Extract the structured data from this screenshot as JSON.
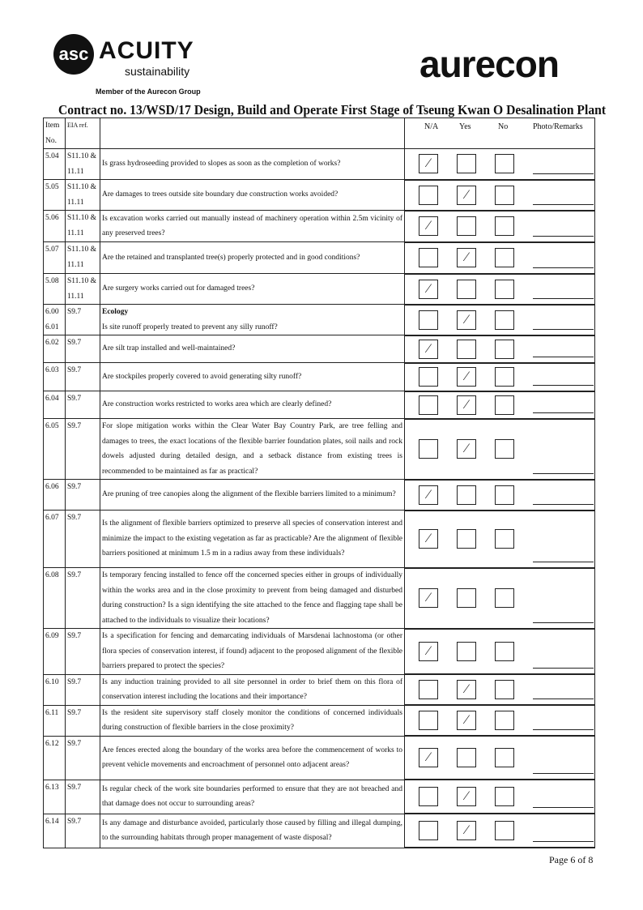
{
  "header": {
    "logo_left": "ACUITY",
    "logo_left_sub": "sustainability",
    "logo_left_member": "Member of the Aurecon Group",
    "logo_right": "aurecon",
    "title": "Contract no.  13/WSD/17 Design, Build and Operate First Stage of Tseung Kwan O Desalination Plant"
  },
  "columns": {
    "item": "Item No.",
    "eia": "EIA ref.",
    "na": "N/A",
    "yes": "Yes",
    "no": "No",
    "remarks": "Photo/Remarks"
  },
  "rows": [
    {
      "item": "5.04",
      "eia": "S11.10 & 11.11",
      "text": "Is grass hydroseeding provided to slopes as soon as the completion of works?",
      "check": "N/A"
    },
    {
      "item": "5.05",
      "eia": "S11.10 & 11.11",
      "text": "Are damages to trees outside site boundary due construction works avoided?",
      "check": "Yes"
    },
    {
      "item": "5.06",
      "eia": "S11.10 & 11.11",
      "text": "Is excavation works carried out manually instead of machinery operation within 2.5m vicinity of any preserved trees?",
      "check": "N/A"
    },
    {
      "item": "5.07",
      "eia": "S11.10 & 11.11",
      "text": "Are the retained and transplanted tree(s) properly protected and in good conditions?",
      "check": "Yes"
    },
    {
      "item": "5.08",
      "eia": "S11.10 & 11.11",
      "text": "Are surgery works carried out for damaged trees?",
      "check": "N/A"
    },
    {
      "item": "6.00 6.01",
      "eia": "S9.7",
      "heading": "Ecology",
      "text": "Is site runoff properly treated to prevent any silly runoff?",
      "check": "Yes"
    },
    {
      "item": "6.02",
      "eia": "S9.7",
      "text": "Are silt trap installed and well-maintained?",
      "check": "N/A"
    },
    {
      "item": "6.03",
      "eia": "S9.7",
      "text": "Are stockpiles properly covered to avoid generating silty runoff?",
      "check": "Yes"
    },
    {
      "item": "6.04",
      "eia": "S9.7",
      "text": "Are construction works restricted to works area which are clearly defined?",
      "check": "Yes"
    },
    {
      "item": "6.05",
      "eia": "S9.7",
      "text": "For slope mitigation works within the Clear Water Bay Country Park, are tree felling and damages to trees, the exact locations of the flexible barrier foundation plates, soil nails and rock dowels adjusted during detailed design, and a setback distance from existing trees is recommended to be maintained as far as practical?",
      "check": "Yes"
    },
    {
      "item": "6.06",
      "eia": "S9.7",
      "text": "Are pruning of tree canopies along the alignment of the flexible barriers limited to a minimum?",
      "check": "N/A"
    },
    {
      "item": "6.07",
      "eia": "S9.7",
      "text": "Is the alignment of flexible barriers optimized to preserve all species of conservation interest and minimize the impact to the existing vegetation as far as practicable? Are the alignment of flexible barriers positioned at minimum 1.5 m in a radius away from these individuals?",
      "check": "N/A"
    },
    {
      "item": "6.08",
      "eia": "S9.7",
      "text": "Is temporary fencing installed to fence off the concerned species either in groups of individually within the works area and in the close proximity to prevent from being damaged and disturbed during construction? Is a sign identifying the site attached to the fence and flagging tape shall be attached to the individuals to visualize their locations?",
      "check": "N/A"
    },
    {
      "item": "6.09",
      "eia": "S9.7",
      "text": "Is a specification for fencing and demarcating individuals of Marsdenai lachnostoma (or other flora species of conservation interest, if found) adjacent to the proposed alignment of the flexible barriers prepared to protect the species?",
      "check": "N/A"
    },
    {
      "item": "6.10",
      "eia": "S9.7",
      "text": "Is any induction training provided to all site personnel in order to brief them on this flora of conservation interest including the locations and their importance?",
      "check": "Yes"
    },
    {
      "item": "6.11",
      "eia": "S9.7",
      "text": "Is the resident site supervisory staff closely monitor the conditions of concerned individuals during construction of flexible barriers in the close  proximity?",
      "check": "Yes"
    },
    {
      "item": "6.12",
      "eia": "S9.7",
      "text": "Are fences erected along the boundary of the works area before the commencement of works to prevent vehicle movements and encroachment of personnel onto adjacent areas?",
      "check": "N/A"
    },
    {
      "item": "6.13",
      "eia": "S9.7",
      "text": "Is regular check of the work site boundaries performed to ensure that they are not breached and that damage does not occur to surrounding areas?",
      "check": "Yes"
    },
    {
      "item": "6.14",
      "eia": "S9.7",
      "text": "Is any damage and disturbance avoided, particularly those caused by filling and illegal dumping, to the surrounding habitats through proper management of waste disposal?",
      "check": "Yes"
    }
  ],
  "check_mark": "⁄",
  "footer": {
    "page": "Page 6 of 8"
  }
}
